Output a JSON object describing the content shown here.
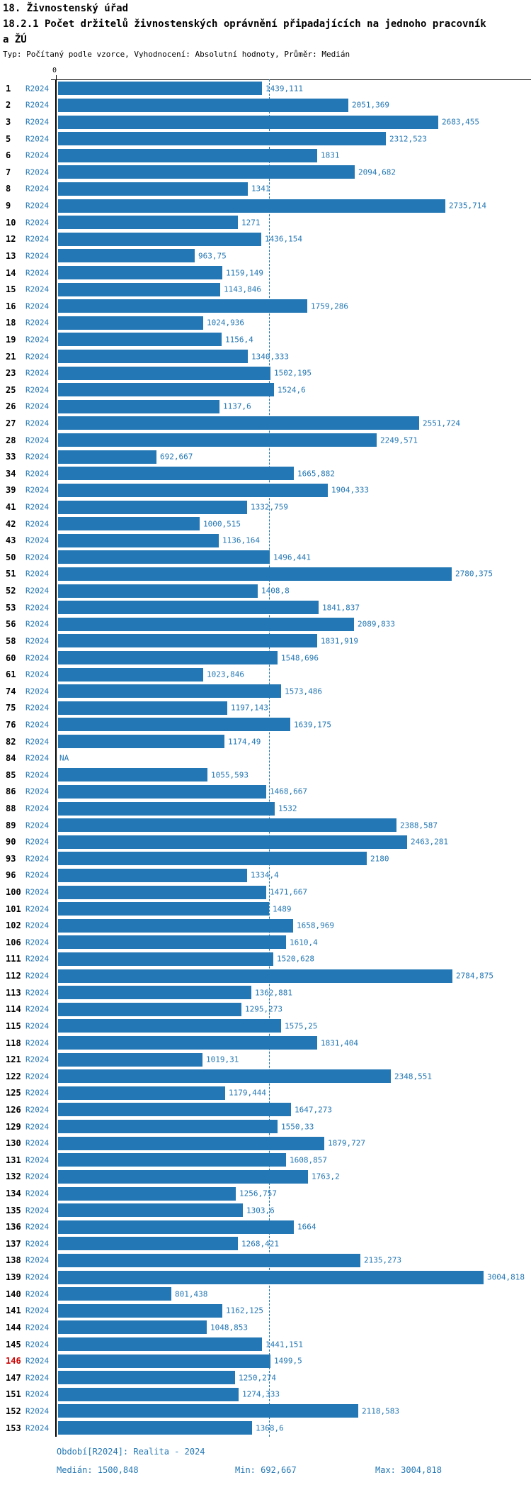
{
  "header": {
    "title": "18. Živnostenský úřad",
    "subtitle_line1": "18.2.1 Počet držitelů živnostenských oprávnění připadajících na jednoho pracovník",
    "subtitle_line2": "a ŽÚ",
    "meta": "Typ: Počítaný podle vzorce, Vyhodnocení: Absolutní hodnoty, Průměr: Medián"
  },
  "chart_data": {
    "type": "bar",
    "orientation": "horizontal",
    "series_label": "R2024",
    "zero_label": "0",
    "xlim": [
      0,
      3340
    ],
    "median_value": 1500.848,
    "min_value": 692.667,
    "max_value": 3004.818,
    "legend_position": "none",
    "grid": "median-dashed-line-only",
    "rows": [
      {
        "id": "1",
        "value": 1439.111,
        "display": "1439,111"
      },
      {
        "id": "2",
        "value": 2051.369,
        "display": "2051,369"
      },
      {
        "id": "3",
        "value": 2683.455,
        "display": "2683,455"
      },
      {
        "id": "5",
        "value": 2312.523,
        "display": "2312,523"
      },
      {
        "id": "6",
        "value": 1831,
        "display": "1831"
      },
      {
        "id": "7",
        "value": 2094.682,
        "display": "2094,682"
      },
      {
        "id": "8",
        "value": 1341,
        "display": "1341"
      },
      {
        "id": "9",
        "value": 2735.714,
        "display": "2735,714"
      },
      {
        "id": "10",
        "value": 1271,
        "display": "1271"
      },
      {
        "id": "12",
        "value": 1436.154,
        "display": "1436,154"
      },
      {
        "id": "13",
        "value": 963.75,
        "display": "963,75"
      },
      {
        "id": "14",
        "value": 1159.149,
        "display": "1159,149"
      },
      {
        "id": "15",
        "value": 1143.846,
        "display": "1143,846"
      },
      {
        "id": "16",
        "value": 1759.286,
        "display": "1759,286"
      },
      {
        "id": "18",
        "value": 1024.936,
        "display": "1024,936"
      },
      {
        "id": "19",
        "value": 1156.4,
        "display": "1156,4"
      },
      {
        "id": "21",
        "value": 1340.333,
        "display": "1340,333"
      },
      {
        "id": "23",
        "value": 1502.195,
        "display": "1502,195"
      },
      {
        "id": "25",
        "value": 1524.6,
        "display": "1524,6"
      },
      {
        "id": "26",
        "value": 1137.6,
        "display": "1137,6"
      },
      {
        "id": "27",
        "value": 2551.724,
        "display": "2551,724"
      },
      {
        "id": "28",
        "value": 2249.571,
        "display": "2249,571"
      },
      {
        "id": "33",
        "value": 692.667,
        "display": "692,667"
      },
      {
        "id": "34",
        "value": 1665.882,
        "display": "1665,882"
      },
      {
        "id": "39",
        "value": 1904.333,
        "display": "1904,333"
      },
      {
        "id": "41",
        "value": 1332.759,
        "display": "1332,759"
      },
      {
        "id": "42",
        "value": 1000.515,
        "display": "1000,515"
      },
      {
        "id": "43",
        "value": 1136.164,
        "display": "1136,164"
      },
      {
        "id": "50",
        "value": 1496.441,
        "display": "1496,441"
      },
      {
        "id": "51",
        "value": 2780.375,
        "display": "2780,375"
      },
      {
        "id": "52",
        "value": 1408.8,
        "display": "1408,8"
      },
      {
        "id": "53",
        "value": 1841.837,
        "display": "1841,837"
      },
      {
        "id": "56",
        "value": 2089.833,
        "display": "2089,833"
      },
      {
        "id": "58",
        "value": 1831.919,
        "display": "1831,919"
      },
      {
        "id": "60",
        "value": 1548.696,
        "display": "1548,696"
      },
      {
        "id": "61",
        "value": 1023.846,
        "display": "1023,846"
      },
      {
        "id": "74",
        "value": 1573.486,
        "display": "1573,486"
      },
      {
        "id": "75",
        "value": 1197.143,
        "display": "1197,143"
      },
      {
        "id": "76",
        "value": 1639.175,
        "display": "1639,175"
      },
      {
        "id": "82",
        "value": 1174.49,
        "display": "1174,49"
      },
      {
        "id": "84",
        "value": null,
        "display": "NA"
      },
      {
        "id": "85",
        "value": 1055.593,
        "display": "1055,593"
      },
      {
        "id": "86",
        "value": 1468.667,
        "display": "1468,667"
      },
      {
        "id": "88",
        "value": 1532,
        "display": "1532"
      },
      {
        "id": "89",
        "value": 2388.587,
        "display": "2388,587"
      },
      {
        "id": "90",
        "value": 2463.281,
        "display": "2463,281"
      },
      {
        "id": "93",
        "value": 2180,
        "display": "2180"
      },
      {
        "id": "96",
        "value": 1334.4,
        "display": "1334,4"
      },
      {
        "id": "100",
        "value": 1471.667,
        "display": "1471,667"
      },
      {
        "id": "101",
        "value": 1489,
        "display": "1489"
      },
      {
        "id": "102",
        "value": 1658.969,
        "display": "1658,969"
      },
      {
        "id": "106",
        "value": 1610.4,
        "display": "1610,4"
      },
      {
        "id": "111",
        "value": 1520.628,
        "display": "1520,628"
      },
      {
        "id": "112",
        "value": 2784.875,
        "display": "2784,875"
      },
      {
        "id": "113",
        "value": 1362.881,
        "display": "1362,881"
      },
      {
        "id": "114",
        "value": 1295.273,
        "display": "1295,273"
      },
      {
        "id": "115",
        "value": 1575.25,
        "display": "1575,25"
      },
      {
        "id": "118",
        "value": 1831.404,
        "display": "1831,404"
      },
      {
        "id": "121",
        "value": 1019.31,
        "display": "1019,31"
      },
      {
        "id": "122",
        "value": 2348.551,
        "display": "2348,551"
      },
      {
        "id": "125",
        "value": 1179.444,
        "display": "1179,444"
      },
      {
        "id": "126",
        "value": 1647.273,
        "display": "1647,273"
      },
      {
        "id": "129",
        "value": 1550.33,
        "display": "1550,33"
      },
      {
        "id": "130",
        "value": 1879.727,
        "display": "1879,727"
      },
      {
        "id": "131",
        "value": 1608.857,
        "display": "1608,857"
      },
      {
        "id": "132",
        "value": 1763.2,
        "display": "1763,2"
      },
      {
        "id": "134",
        "value": 1256.757,
        "display": "1256,757"
      },
      {
        "id": "135",
        "value": 1303.6,
        "display": "1303,6"
      },
      {
        "id": "136",
        "value": 1664,
        "display": "1664"
      },
      {
        "id": "137",
        "value": 1268.421,
        "display": "1268,421"
      },
      {
        "id": "138",
        "value": 2135.273,
        "display": "2135,273"
      },
      {
        "id": "139",
        "value": 3004.818,
        "display": "3004,818"
      },
      {
        "id": "140",
        "value": 801.438,
        "display": "801,438"
      },
      {
        "id": "141",
        "value": 1162.125,
        "display": "1162,125"
      },
      {
        "id": "144",
        "value": 1048.853,
        "display": "1048,853"
      },
      {
        "id": "145",
        "value": 1441.151,
        "display": "1441,151"
      },
      {
        "id": "146",
        "value": 1499.5,
        "display": "1499,5",
        "highlight": true
      },
      {
        "id": "147",
        "value": 1250.274,
        "display": "1250,274"
      },
      {
        "id": "151",
        "value": 1274.333,
        "display": "1274,333"
      },
      {
        "id": "152",
        "value": 2118.583,
        "display": "2118,583"
      },
      {
        "id": "153",
        "value": 1368.6,
        "display": "1368,6"
      }
    ]
  },
  "footer": {
    "period": "Období[R2024]: Realita - 2024",
    "median": "Medián: 1500,848",
    "min": "Min: 692,667",
    "max": "Max: 3004,818"
  },
  "colors": {
    "bar": "#2377b4",
    "label_text": "#2377b4",
    "median_line": "#2377b4",
    "highlight_row": "#cc0000",
    "axis": "#000000",
    "background": "#ffffff"
  }
}
